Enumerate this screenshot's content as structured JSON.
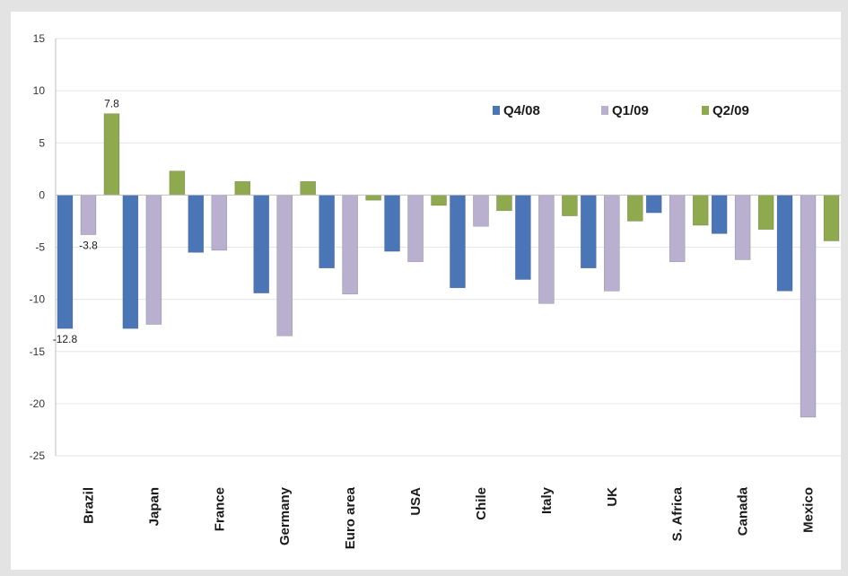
{
  "colors": {
    "background": "#e3e3e3",
    "plot": "#ffffff",
    "gridline": "#e6e6e6",
    "q4_08": "#4a76b8",
    "q1_09": "#b9afcf",
    "q2_09": "#8faa4e"
  },
  "chart_data": {
    "type": "bar",
    "title": "",
    "xlabel": "",
    "ylabel": "",
    "ylim": [
      -25,
      15
    ],
    "yticks": [
      15,
      10,
      5,
      0,
      -5,
      -10,
      -15,
      -20,
      -25
    ],
    "ytick_labels": [
      "15",
      "10",
      "5",
      "0",
      "-5",
      "-10",
      "-15",
      "-20",
      "-25"
    ],
    "grid": true,
    "legend_position": "top-right",
    "categories": [
      "Brazil",
      "Japan",
      "France",
      "Germany",
      "Euro area",
      "USA",
      "Chile",
      "Italy",
      "UK",
      "S. Africa",
      "Canada",
      "Mexico"
    ],
    "series": [
      {
        "name": "Q4/08",
        "color": "#4a76b8",
        "values": [
          -12.8,
          -12.8,
          -5.5,
          -9.4,
          -7.0,
          -5.4,
          -8.9,
          -8.1,
          -7.0,
          -1.7,
          -3.7,
          -9.2
        ]
      },
      {
        "name": "Q1/09",
        "color": "#b9afcf",
        "values": [
          -3.8,
          -12.4,
          -5.3,
          -13.5,
          -9.5,
          -6.4,
          -3.0,
          -10.4,
          -9.2,
          -6.4,
          -6.2,
          -21.3
        ]
      },
      {
        "name": "Q2/09",
        "color": "#8faa4e",
        "values": [
          7.8,
          2.3,
          1.3,
          1.3,
          -0.5,
          -1.0,
          -1.5,
          -2.0,
          -2.5,
          -2.9,
          -3.3,
          -4.4
        ]
      }
    ],
    "data_labels": [
      {
        "text": "7.8",
        "category": "Brazil",
        "series": "Q2/09"
      },
      {
        "text": "-3.8",
        "category": "Brazil",
        "series": "Q1/09"
      },
      {
        "text": "-12.8",
        "category": "Brazil",
        "series": "Q4/08"
      }
    ]
  }
}
